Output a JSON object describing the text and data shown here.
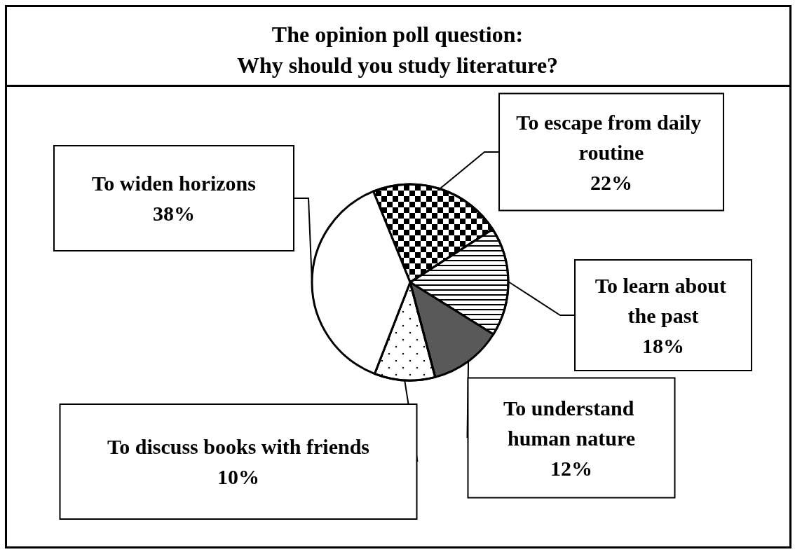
{
  "chart_data": {
    "type": "pie",
    "title": "The opinion poll question:\nWhy should you study literature?",
    "categories": [
      "To escape from daily routine",
      "To learn about the past",
      "To understand human nature",
      "To discuss books with friends",
      "To widen horizons"
    ],
    "values": [
      22,
      18,
      12,
      10,
      38
    ],
    "value_labels": [
      "22%",
      "18%",
      "12%",
      "10%",
      "38%"
    ],
    "colors": [
      "#ffffff",
      "#ffffff",
      "#595959",
      "#ffffff",
      "#ffffff"
    ],
    "legend": false
  }
}
